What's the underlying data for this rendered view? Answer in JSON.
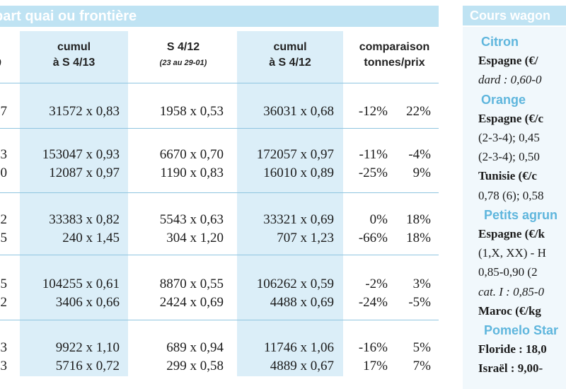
{
  "left_table": {
    "banner": "part quai ou frontière",
    "headers": [
      {
        "line1": "cumul",
        "line2": "à S 4/13",
        "sub": ""
      },
      {
        "line1": "S 4/12",
        "line2": "",
        "sub": "(23 au 29-01)"
      },
      {
        "line1": "cumul",
        "line2": "à S 4/12",
        "sub": ""
      },
      {
        "line1": "comparaison",
        "line2": "tonnes/prix",
        "sub": ""
      }
    ],
    "edge_header": ")",
    "rows": [
      {
        "edge": "7",
        "c1": "31572 x 0,83",
        "c2": "1958 x 0,53",
        "c3": "36031 x 0,68",
        "t": "-12%",
        "p": "22%"
      },
      {
        "edge": "3",
        "c1": "153047 x 0,93",
        "c2": "6670 x 0,70",
        "c3": "172057 x 0,97",
        "t": "-11%",
        "p": "-4%"
      },
      {
        "edge": "0",
        "c1": "12087 x 0,97",
        "c2": "1190 x 0,83",
        "c3": "16010 x 0,89",
        "t": "-25%",
        "p": "9%"
      },
      {
        "edge": "2",
        "c1": "33383 x 0,82",
        "c2": "5543 x 0,63",
        "c3": "33321 x 0,69",
        "t": "0%",
        "p": "18%"
      },
      {
        "edge": "5",
        "c1": "240 x 1,45",
        "c2": "304 x 1,20",
        "c3": "707 x 1,23",
        "t": "-66%",
        "p": "18%"
      },
      {
        "edge": "5",
        "c1": "104255 x 0,61",
        "c2": "8870 x 0,55",
        "c3": "106262 x 0,59",
        "t": "-2%",
        "p": "3%"
      },
      {
        "edge": "2",
        "c1": "3406 x 0,66",
        "c2": "2424 x 0,69",
        "c3": "4488 x 0,69",
        "t": "-24%",
        "p": "-5%"
      },
      {
        "edge": "3",
        "c1": "9922 x 1,10",
        "c2": "689 x 0,94",
        "c3": "11746 x 1,06",
        "t": "-16%",
        "p": "5%"
      },
      {
        "edge": "3",
        "c1": "5716 x 0,72",
        "c2": "299 x 0,58",
        "c3": "4889 x 0,67",
        "t": "17%",
        "p": "7%"
      }
    ]
  },
  "sidebar": {
    "title": "Cours wagon",
    "lines": [
      {
        "text": "Citron",
        "style": "heading"
      },
      {
        "text": "Espagne  (€/",
        "style": "bold"
      },
      {
        "text": "dard : 0,60-0",
        "style": "italic"
      },
      {
        "text": "Orange",
        "style": "heading"
      },
      {
        "text": "Espagne (€/c",
        "style": "bold"
      },
      {
        "text": "(2-3-4); 0,45",
        "style": "normal"
      },
      {
        "text": "(2-3-4); 0,50",
        "style": "normal"
      },
      {
        "text": "Tunisie  (€/c",
        "style": "bold"
      },
      {
        "text": "0,78 (6); 0,58",
        "style": "normal"
      },
      {
        "text": "Petits agrun",
        "style": "heading"
      },
      {
        "text": "Espagne (€/k",
        "style": "bold"
      },
      {
        "text": "(1,X,  XX) - H",
        "style": "normal"
      },
      {
        "text": "0,85-0,90  (2",
        "style": "normal"
      },
      {
        "text": "cat. I : 0,85-0",
        "style": "italic"
      },
      {
        "text": "Maroc (€/kg",
        "style": "bold"
      },
      {
        "text": "Pomelo Star",
        "style": "heading"
      },
      {
        "text": "Floride : 18,0",
        "style": "bold"
      },
      {
        "text": "Israël : 9,00-",
        "style": "bold"
      }
    ]
  }
}
